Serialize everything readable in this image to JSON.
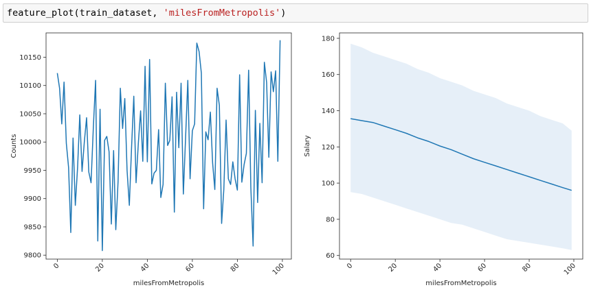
{
  "code": {
    "func": "feature_plot(train_dataset, ",
    "arg": "'milesFromMetropolis'",
    "close": ")"
  },
  "chart_data": [
    {
      "type": "line",
      "title": "",
      "xlabel": "milesFromMetropolis",
      "ylabel": "Counts",
      "xlim": [
        -5,
        104
      ],
      "ylim": [
        9793,
        10193
      ],
      "xticks": [
        "0",
        "20",
        "40",
        "60",
        "80",
        "100"
      ],
      "xtick_values": [
        0,
        20,
        40,
        60,
        80,
        100
      ],
      "yticks": [
        "9800",
        "9850",
        "9900",
        "9950",
        "10000",
        "10050",
        "10100",
        "10150"
      ],
      "ytick_values": [
        9800,
        9850,
        9900,
        9950,
        10000,
        10050,
        10100,
        10150
      ],
      "line_color": "#1f77b4",
      "x": [
        0,
        1,
        2,
        3,
        4,
        5,
        6,
        7,
        8,
        9,
        10,
        11,
        12,
        13,
        14,
        15,
        16,
        17,
        18,
        19,
        20,
        21,
        22,
        23,
        24,
        25,
        26,
        27,
        28,
        29,
        30,
        31,
        32,
        33,
        34,
        35,
        36,
        37,
        38,
        39,
        40,
        41,
        42,
        43,
        44,
        45,
        46,
        47,
        48,
        49,
        50,
        51,
        52,
        53,
        54,
        55,
        56,
        57,
        58,
        59,
        60,
        61,
        62,
        63,
        64,
        65,
        66,
        67,
        68,
        69,
        70,
        71,
        72,
        73,
        74,
        75,
        76,
        77,
        78,
        79,
        80,
        81,
        82,
        83,
        84,
        85,
        86,
        87,
        88,
        89,
        90,
        91,
        92,
        93,
        94,
        95,
        96,
        97,
        98,
        99
      ],
      "y": [
        10122,
        10095,
        10032,
        10106,
        9998,
        9955,
        9840,
        10007,
        9888,
        9955,
        10048,
        9948,
        10000,
        10043,
        9947,
        9928,
        10025,
        10109,
        9825,
        10058,
        9808,
        10003,
        10010,
        9983,
        9855,
        9985,
        9845,
        9930,
        10095,
        10024,
        10077,
        9950,
        9888,
        9992,
        10081,
        9928,
        9998,
        10055,
        9966,
        10134,
        9965,
        10146,
        9926,
        9945,
        9950,
        10022,
        9902,
        9925,
        10104,
        9994,
        10003,
        10080,
        9876,
        10088,
        9990,
        10104,
        9908,
        10009,
        10109,
        9935,
        10020,
        10032,
        10175,
        10160,
        10122,
        9882,
        10018,
        10004,
        10053,
        9963,
        9916,
        10095,
        10065,
        9856,
        9916,
        10039,
        9935,
        9925,
        9965,
        9935,
        9915,
        10119,
        9929,
        9960,
        9980,
        10127,
        9920,
        9816,
        10056,
        9893,
        10033,
        9928,
        10141,
        10105,
        9973,
        10124,
        10089,
        10126,
        9966,
        10180
      ]
    },
    {
      "type": "line",
      "title": "",
      "xlabel": "milesFromMetropolis",
      "ylabel": "Salary",
      "xlim": [
        -5,
        104
      ],
      "ylim": [
        58,
        183
      ],
      "xticks": [
        "0",
        "20",
        "40",
        "60",
        "80",
        "100"
      ],
      "xtick_values": [
        0,
        20,
        40,
        60,
        80,
        100
      ],
      "yticks": [
        "60",
        "80",
        "100",
        "120",
        "140",
        "160",
        "180"
      ],
      "ytick_values": [
        60,
        80,
        100,
        120,
        140,
        160,
        180
      ],
      "line_color": "#1f77b4",
      "band_color": "#e6eff8",
      "x": [
        0,
        5,
        10,
        15,
        20,
        25,
        30,
        35,
        40,
        45,
        50,
        55,
        60,
        65,
        70,
        75,
        80,
        85,
        90,
        95,
        99
      ],
      "y": [
        135.6,
        134.5,
        133.5,
        131.5,
        129.5,
        127.5,
        125.0,
        123.0,
        120.5,
        118.5,
        116.0,
        113.5,
        111.5,
        109.5,
        107.5,
        105.5,
        103.5,
        101.5,
        99.5,
        97.5,
        96.0
      ],
      "band_upper": [
        177,
        175,
        172,
        170,
        168,
        166,
        163,
        161,
        158,
        156,
        154,
        151,
        149,
        147,
        144,
        142,
        140,
        137,
        135,
        133,
        129
      ],
      "band_lower": [
        95,
        94,
        92,
        90,
        88,
        86,
        84,
        82,
        80,
        78,
        77,
        75,
        73,
        71,
        69,
        68,
        67,
        66,
        65,
        64,
        63
      ]
    }
  ]
}
